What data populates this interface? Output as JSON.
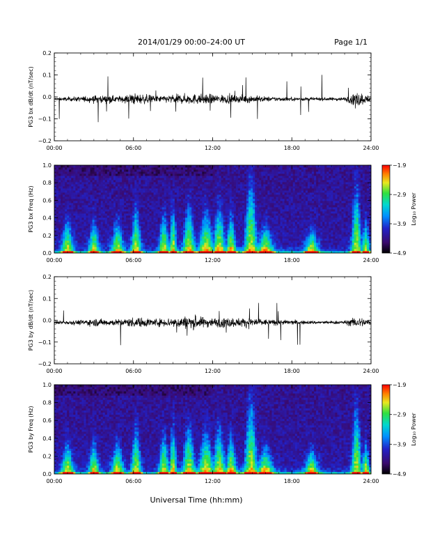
{
  "header": {
    "title": "2014/01/29  00:00–24:00 UT",
    "page": "Page 1/1"
  },
  "footer": {
    "xlabel": "Universal Time (hh:mm)"
  },
  "chart_data": [
    {
      "type": "line",
      "ylabel": "PG3 bx dB/dt (nT/sec)",
      "xlim": [
        "00:00",
        "24:00"
      ],
      "ylim": [
        -0.2,
        0.2
      ],
      "x_ticks": [
        "00:00",
        "06:00",
        "12:00",
        "18:00",
        "24:00"
      ],
      "y_ticks": [
        "0.2",
        "0.1",
        "0.0",
        "−0.1",
        "−0.2"
      ],
      "activity_profile": {
        "hours": [
          0,
          2,
          3,
          5,
          6,
          8,
          9,
          10,
          11,
          12,
          13,
          14,
          15,
          16,
          18,
          20,
          22,
          23,
          24
        ],
        "amplitude": [
          0.012,
          0.02,
          0.03,
          0.025,
          0.045,
          0.025,
          0.035,
          0.04,
          0.04,
          0.035,
          0.035,
          0.03,
          0.03,
          0.02,
          0.015,
          0.012,
          0.015,
          0.06,
          0.02
        ]
      }
    },
    {
      "type": "heatmap",
      "ylabel": "PG3 bx Freq (Hz)",
      "xlim": [
        "00:00",
        "24:00"
      ],
      "ylim": [
        0.0,
        1.0
      ],
      "x_ticks": [
        "00:00",
        "06:00",
        "12:00",
        "18:00",
        "24:00"
      ],
      "y_ticks": [
        "1.0",
        "0.8",
        "0.6",
        "0.4",
        "0.2",
        "0.0"
      ],
      "colorbar": {
        "label": "Log₁₀ Power",
        "ticks": [
          "−1.9",
          "−2.9",
          "−3.9",
          "−4.9"
        ],
        "range": [
          -4.9,
          -1.9
        ]
      }
    },
    {
      "type": "line",
      "ylabel": "PG3 by dB/dt (nT/sec)",
      "xlim": [
        "00:00",
        "24:00"
      ],
      "ylim": [
        -0.2,
        0.2
      ],
      "x_ticks": [
        "00:00",
        "06:00",
        "12:00",
        "18:00",
        "24:00"
      ],
      "y_ticks": [
        "0.2",
        "0.1",
        "0.0",
        "−0.1",
        "−0.2"
      ],
      "activity_profile": {
        "hours": [
          0,
          2,
          3,
          5,
          6,
          8,
          9,
          10,
          11,
          12,
          13,
          14,
          15,
          16,
          18,
          20,
          22,
          23,
          24
        ],
        "amplitude": [
          0.012,
          0.02,
          0.03,
          0.025,
          0.04,
          0.03,
          0.04,
          0.05,
          0.045,
          0.035,
          0.04,
          0.035,
          0.04,
          0.025,
          0.018,
          0.012,
          0.015,
          0.045,
          0.02
        ]
      }
    },
    {
      "type": "heatmap",
      "ylabel": "PG3 by Freq (Hz)",
      "xlim": [
        "00:00",
        "24:00"
      ],
      "ylim": [
        0.0,
        1.0
      ],
      "x_ticks": [
        "00:00",
        "06:00",
        "12:00",
        "18:00",
        "24:00"
      ],
      "y_ticks": [
        "1.0",
        "0.8",
        "0.6",
        "0.4",
        "0.2",
        "0.0"
      ],
      "colorbar": {
        "label": "Log₁₀ Power",
        "ticks": [
          "−1.9",
          "−2.9",
          "−3.9",
          "−4.9"
        ],
        "range": [
          -4.9,
          -1.9
        ]
      }
    }
  ]
}
